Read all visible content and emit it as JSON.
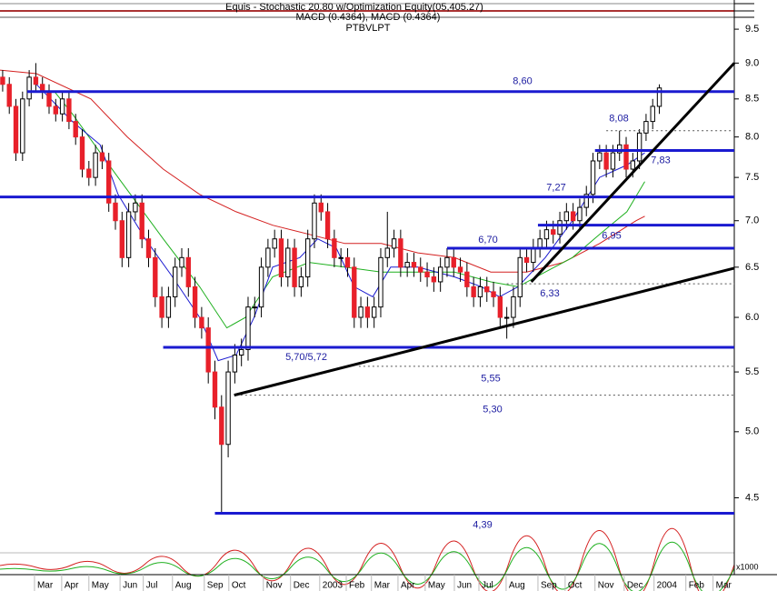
{
  "chart_data": {
    "type": "candlestick",
    "title": "Equis - Stochastic 20.80 w/Optimization Equity(05,405.27)",
    "subtitle": "MACD (0.4364), MACD (0.4364)",
    "symbol": "PTBVLPT",
    "log_scale": true,
    "up_color": "#ffffff",
    "down_color": "#e8202a",
    "open": [
      8.8,
      8.7,
      8.4,
      7.8,
      8.5,
      8.8,
      8.7,
      8.6,
      8.4,
      8.3,
      8.5,
      8.2,
      8.0,
      7.6,
      7.5,
      7.8,
      7.7,
      7.2,
      7.0,
      6.6,
      7.1,
      7.2,
      6.8,
      6.6,
      6.2,
      6.0,
      6.2,
      6.5,
      6.6,
      6.3,
      6.0,
      5.9,
      5.5,
      5.2,
      4.9,
      5.5,
      5.65,
      5.7,
      6.1,
      6.1,
      6.5,
      6.7,
      6.8,
      6.4,
      6.7,
      6.3,
      6.4,
      6.8,
      7.2,
      7.1,
      6.8,
      6.6,
      6.6,
      6.5,
      6.0,
      6.1,
      6.0,
      6.1,
      6.6,
      6.7,
      6.8,
      6.5,
      6.55,
      6.5,
      6.45,
      6.4,
      6.35,
      6.5,
      6.6,
      6.5,
      6.45,
      6.3,
      6.2,
      6.3,
      6.25,
      6.2,
      6.0,
      6.0,
      6.2,
      6.6,
      6.55,
      6.7,
      6.8,
      6.9,
      6.85,
      7.0,
      7.1,
      7.0,
      7.15,
      7.3,
      7.7,
      7.8,
      7.6,
      7.8,
      7.9,
      7.6,
      7.7,
      8.05,
      8.2,
      8.4
    ],
    "high": [
      8.9,
      8.8,
      8.5,
      8.6,
      8.9,
      9.0,
      8.8,
      8.7,
      8.5,
      8.6,
      8.6,
      8.3,
      8.1,
      7.7,
      7.9,
      7.9,
      7.8,
      7.3,
      7.1,
      7.2,
      7.3,
      7.3,
      6.9,
      6.7,
      6.3,
      6.3,
      6.6,
      6.7,
      6.7,
      6.4,
      6.1,
      6.0,
      5.6,
      5.3,
      5.6,
      5.75,
      5.8,
      6.2,
      6.2,
      6.6,
      6.8,
      6.9,
      6.9,
      6.8,
      6.8,
      6.5,
      6.9,
      7.3,
      7.3,
      7.2,
      6.9,
      6.7,
      6.7,
      6.6,
      6.2,
      6.2,
      6.2,
      6.7,
      7.1,
      6.9,
      6.9,
      6.65,
      6.65,
      6.6,
      6.55,
      6.5,
      6.6,
      6.7,
      6.7,
      6.6,
      6.55,
      6.4,
      6.4,
      6.4,
      6.35,
      6.3,
      6.1,
      6.3,
      6.7,
      6.7,
      6.8,
      6.9,
      7.0,
      7.0,
      7.1,
      7.2,
      7.2,
      7.25,
      7.4,
      7.8,
      7.9,
      7.9,
      7.9,
      8.08,
      8.0,
      7.8,
      8.1,
      8.3,
      8.5,
      8.7
    ],
    "low": [
      8.6,
      8.3,
      7.7,
      7.7,
      8.4,
      8.6,
      8.5,
      8.3,
      8.2,
      8.2,
      8.1,
      7.9,
      7.5,
      7.4,
      7.4,
      7.6,
      7.1,
      6.9,
      6.5,
      6.5,
      7.0,
      6.7,
      6.5,
      6.1,
      5.9,
      5.9,
      6.1,
      6.4,
      6.2,
      5.9,
      5.8,
      5.4,
      5.1,
      4.39,
      4.8,
      5.4,
      5.55,
      5.6,
      6.0,
      6.0,
      6.4,
      6.6,
      6.3,
      6.3,
      6.2,
      6.2,
      6.3,
      6.7,
      7.0,
      6.7,
      6.5,
      6.5,
      6.4,
      5.9,
      5.9,
      5.9,
      5.9,
      6.0,
      6.5,
      6.6,
      6.4,
      6.4,
      6.4,
      6.35,
      6.3,
      6.25,
      6.25,
      6.4,
      6.4,
      6.35,
      6.2,
      6.1,
      6.1,
      6.15,
      6.1,
      5.9,
      5.8,
      5.9,
      6.1,
      6.45,
      6.45,
      6.6,
      6.7,
      6.75,
      6.75,
      6.9,
      6.9,
      6.9,
      7.05,
      7.2,
      7.6,
      7.5,
      7.5,
      7.7,
      7.5,
      7.5,
      7.6,
      7.95,
      8.1,
      8.3
    ],
    "close": [
      8.7,
      8.4,
      7.8,
      8.5,
      8.8,
      8.7,
      8.6,
      8.4,
      8.3,
      8.5,
      8.2,
      8.0,
      7.6,
      7.5,
      7.8,
      7.7,
      7.2,
      7.0,
      6.6,
      7.1,
      7.2,
      6.8,
      6.6,
      6.2,
      6.0,
      6.2,
      6.5,
      6.6,
      6.3,
      6.0,
      5.9,
      5.5,
      5.2,
      4.9,
      5.5,
      5.65,
      5.7,
      6.1,
      6.1,
      6.5,
      6.7,
      6.8,
      6.4,
      6.7,
      6.3,
      6.4,
      6.8,
      7.2,
      7.1,
      6.8,
      6.6,
      6.6,
      6.5,
      6.0,
      6.1,
      6.0,
      6.1,
      6.6,
      6.7,
      6.8,
      6.5,
      6.55,
      6.5,
      6.45,
      6.4,
      6.35,
      6.5,
      6.6,
      6.5,
      6.45,
      6.3,
      6.2,
      6.3,
      6.25,
      6.2,
      6.0,
      6.0,
      6.2,
      6.6,
      6.55,
      6.7,
      6.8,
      6.9,
      6.85,
      7.0,
      7.1,
      7.0,
      7.15,
      7.3,
      7.7,
      7.8,
      7.6,
      7.8,
      7.9,
      7.6,
      7.7,
      8.05,
      8.2,
      8.4,
      8.65
    ],
    "series": [
      {
        "color": "#d42020",
        "x": [
          -0.4,
          5.1,
          13.3,
          18.8,
          24.2,
          29.7,
          35.2,
          40.7,
          46.2,
          51.6,
          57.1,
          62.6,
          68.1,
          73.6,
          79.0,
          84.5,
          90.0,
          95.5,
          96.8
        ],
        "values": [
          8.9,
          8.85,
          8.5,
          8.0,
          7.6,
          7.3,
          7.1,
          6.95,
          6.85,
          6.75,
          6.75,
          6.65,
          6.6,
          6.45,
          6.45,
          6.55,
          6.75,
          7.0,
          7.05
        ]
      },
      {
        "color": "#1fb01f",
        "x": [
          7.8,
          10.5,
          17.4,
          24.2,
          29.7,
          33.8,
          36.6,
          40.7,
          46.2,
          51.6,
          57.1,
          62.6,
          68.1,
          73.6,
          77.7,
          81.8,
          85.9,
          90.0,
          94.1,
          96.8
        ],
        "values": [
          8.6,
          8.3,
          7.5,
          6.8,
          6.3,
          5.9,
          6.0,
          6.4,
          6.55,
          6.5,
          6.45,
          6.45,
          6.45,
          6.35,
          6.3,
          6.45,
          6.6,
          6.85,
          7.1,
          7.45
        ]
      },
      {
        "color": "#1a1ad0",
        "x": [
          5.1,
          10.5,
          14.7,
          17.4,
          21.5,
          25.6,
          29.7,
          32.5,
          35.2,
          37.9,
          40.7,
          44.8,
          47.5,
          50.3,
          53.0,
          55.8,
          58.5,
          62.6,
          68.1,
          72.2,
          74.9,
          77.7,
          81.8,
          85.9,
          90.0,
          94.1,
          96.8
        ],
        "values": [
          8.7,
          8.2,
          7.9,
          7.3,
          6.8,
          6.4,
          6.0,
          5.6,
          5.65,
          6.0,
          6.5,
          6.6,
          6.8,
          6.7,
          6.3,
          6.2,
          6.5,
          6.5,
          6.4,
          6.3,
          6.2,
          6.3,
          6.6,
          7.0,
          7.5,
          7.65,
          7.8
        ]
      }
    ],
    "levels": [
      {
        "value": 8.6,
        "label": "8,60",
        "style": "solid",
        "x_start": 3.7
      },
      {
        "value": 8.08,
        "label": "8,08",
        "style": "dotted",
        "x_start": 91
      },
      {
        "value": 7.83,
        "label": "7,83",
        "style": "solid",
        "x_start": 89.3
      },
      {
        "value": 7.27,
        "label": "7,27",
        "style": "solid",
        "x_start": -0.4
      },
      {
        "value": 6.95,
        "label": "6,95",
        "style": "solid",
        "x_start": 80.7
      },
      {
        "value": 6.7,
        "label": "6,70",
        "style": "solid",
        "x_start": 67
      },
      {
        "value": 6.33,
        "label": "6,33",
        "style": "dotted",
        "x_start": 76
      },
      {
        "value": 5.72,
        "label": "5,70/5,72",
        "style": "solid",
        "x_start": 24.2
      },
      {
        "value": 5.55,
        "label": "5,55",
        "style": "dotted",
        "x_start": 53.7
      },
      {
        "value": 5.3,
        "label": "5,30",
        "style": "dotted",
        "x_start": 35.2
      },
      {
        "value": 4.39,
        "label": "4,39",
        "style": "solid",
        "x_start": 32
      }
    ],
    "trendlines": [
      {
        "x": [
          34.9,
          110.3
        ],
        "y": [
          5.3,
          6.49
        ]
      },
      {
        "x": [
          79.7,
          110.3
        ],
        "y": [
          6.35,
          9.0
        ]
      }
    ],
    "xlim": [
      -0.4,
      110.3
    ],
    "xticks": [
      {
        "value": 4.8,
        "label": "Mar"
      },
      {
        "value": 8.9,
        "label": "Apr"
      },
      {
        "value": 13.0,
        "label": "May"
      },
      {
        "value": 17.7,
        "label": "Jun"
      },
      {
        "value": 21.2,
        "label": "Jul"
      },
      {
        "value": 25.6,
        "label": "Aug"
      },
      {
        "value": 30.4,
        "label": "Sep"
      },
      {
        "value": 34.1,
        "label": "Oct"
      },
      {
        "value": 39.3,
        "label": "Nov"
      },
      {
        "value": 43.4,
        "label": "Dec"
      },
      {
        "value": 47.8,
        "label": "2003"
      },
      {
        "value": 51.8,
        "label": "Feb"
      },
      {
        "value": 55.6,
        "label": "Mar"
      },
      {
        "value": 59.6,
        "label": "Apr"
      },
      {
        "value": 63.7,
        "label": "May"
      },
      {
        "value": 68.1,
        "label": "Jun"
      },
      {
        "value": 71.8,
        "label": "Jul"
      },
      {
        "value": 75.9,
        "label": "Aug"
      },
      {
        "value": 80.7,
        "label": "Sep"
      },
      {
        "value": 84.8,
        "label": "Oct"
      },
      {
        "value": 89.3,
        "label": "Nov"
      },
      {
        "value": 93.7,
        "label": "Dec"
      },
      {
        "value": 98.2,
        "label": "2004"
      },
      {
        "value": 103.0,
        "label": "Feb"
      },
      {
        "value": 107.1,
        "label": "Mar"
      }
    ],
    "ylim": [
      4.14,
      9.64
    ],
    "yticks": [
      4.5,
      {
        "value": 5,
        "label": "5.0"
      },
      5.5,
      {
        "value": 6,
        "label": "6.0"
      },
      6.5,
      {
        "value": 7,
        "label": "7.0"
      },
      7.5,
      {
        "value": 8,
        "label": "8.0"
      },
      8.5,
      {
        "value": 9,
        "label": "9.0"
      },
      9.5
    ],
    "volume_label": "x1000"
  }
}
